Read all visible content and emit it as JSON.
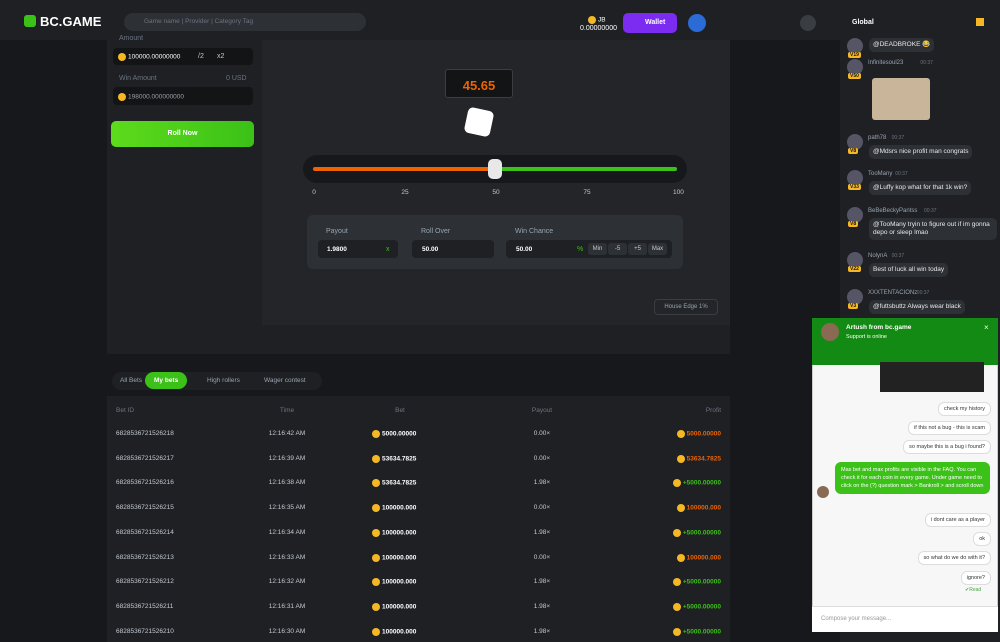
{
  "header": {
    "logo": "BC.GAME",
    "search_placeholder": "Game name | Provider | Category Tag",
    "currency": "JB",
    "balance": "0.00000000",
    "wallet": "Wallet"
  },
  "chat": {
    "tab": "Global",
    "messages": [
      {
        "user": "",
        "time": "",
        "level": "V19",
        "text": "@DEADBROKE 😂"
      },
      {
        "user": "Infinitesoul23",
        "time": "00:37",
        "level": "V50",
        "text": ""
      },
      {
        "user": "path78",
        "time": "00:37",
        "level": "V8",
        "text": "@Mdsrs nice profit man congrats"
      },
      {
        "user": "TooMany",
        "time": "00:37",
        "level": "V33",
        "text": "@Luffy kop what for that 1k win?"
      },
      {
        "user": "BeBeBeckyPantss",
        "time": "00:37",
        "level": "V8",
        "text": "@TooMany tryin to figure out if im gonna depo or sleep lmao"
      },
      {
        "user": "NolynA",
        "time": "00:37",
        "level": "V22",
        "text": "Best of luck all win today"
      },
      {
        "user": "XXXTENTACIONz",
        "time": "00:37",
        "level": "V3",
        "text": "@futtsbuttz Always wear black"
      }
    ]
  },
  "bet_panel": {
    "amount_label": "Amount",
    "amount": "100000.00000000",
    "half": "/2",
    "double": "x2",
    "win_amount_label": "Win Amount",
    "win_amount_usd": "0 USD",
    "win_amount": "198000.000000000",
    "roll_button": "Roll Now"
  },
  "game": {
    "result": "45.65",
    "scale": [
      "0",
      "25",
      "50",
      "75",
      "100"
    ],
    "payout_label": "Payout",
    "payout": "1.9800",
    "payout_unit": "x",
    "roll_over_label": "Roll Over",
    "roll_over": "50.00",
    "win_chance_label": "Win Chance",
    "win_chance": "50.00",
    "percent": "%",
    "chance_buttons": [
      "Min",
      "-5",
      "+5",
      "Max"
    ],
    "house_edge": "House Edge 1%"
  },
  "tabs": [
    "All Bets",
    "My bets",
    "High rollers",
    "Wager contest"
  ],
  "table": {
    "columns": [
      "Bet ID",
      "Time",
      "Bet",
      "Payout",
      "Profit"
    ],
    "rows": [
      [
        "6828536721526218",
        "12:16:42 AM",
        "5000.00000",
        "0.00×",
        "5000.00000"
      ],
      [
        "6828536721526217",
        "12:16:39 AM",
        "53634.7825",
        "0.00×",
        "53634.7825"
      ],
      [
        "6828536721526216",
        "12:16:38 AM",
        "53634.7825",
        "1.98×",
        "+5000.00000"
      ],
      [
        "6828536721526215",
        "12:16:35 AM",
        "100000.000",
        "0.00×",
        "100000.000"
      ],
      [
        "6828536721526214",
        "12:16:34 AM",
        "100000.000",
        "1.98×",
        "+5000.00000"
      ],
      [
        "6828536721526213",
        "12:16:33 AM",
        "100000.000",
        "0.00×",
        "100000.000"
      ],
      [
        "6828536721526212",
        "12:16:32 AM",
        "100000.000",
        "1.98×",
        "+5000.00000"
      ],
      [
        "6828536721526211",
        "12:16:31 AM",
        "100000.000",
        "1.98×",
        "+5000.00000"
      ],
      [
        "6828536721526210",
        "12:16:30 AM",
        "100000.000",
        "1.98×",
        "+5000.00000"
      ]
    ]
  },
  "support": {
    "agent": "Artush from bc.game",
    "status": "Support is online",
    "messages": [
      {
        "from": "user",
        "text": "check my history"
      },
      {
        "from": "user",
        "text": "if this not a bug - this is scam"
      },
      {
        "from": "user",
        "text": "so maybe this is a bug i found?"
      },
      {
        "from": "agent",
        "text": "Max bet and max profits are visible in the FAQ. You can check it for each coin in every game. Under game need to click on the (?) question mark > Bankroll > and scroll down"
      },
      {
        "from": "user",
        "text": "i dont care as a player"
      },
      {
        "from": "user",
        "text": "ok"
      },
      {
        "from": "user",
        "text": "so what do we do with it?"
      },
      {
        "from": "user",
        "text": "ignore?"
      }
    ],
    "read": "Read",
    "compose_placeholder": "Compose your message..."
  }
}
